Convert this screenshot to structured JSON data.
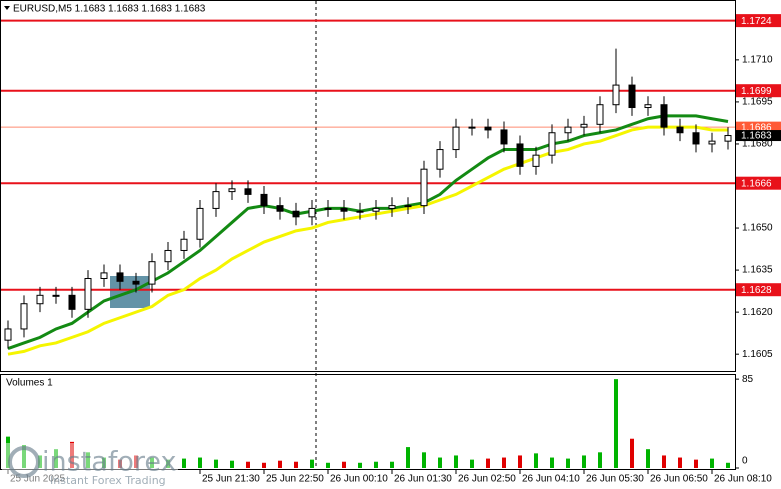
{
  "chart_data": [
    {
      "type": "candlestick",
      "title": "EURUSD,M5 1.1683 1.1683 1.1683 1.1683",
      "categories": [
        "25 Jun 2025",
        null,
        null,
        null,
        null,
        null,
        null,
        null,
        null,
        null,
        null,
        null,
        "25 Jun 21:30",
        null,
        null,
        null,
        "25 Jun 22:50",
        null,
        null,
        null,
        "26 Jun 00:10",
        null,
        null,
        null,
        "26 Jun 01:30",
        null,
        null,
        null,
        "26 Jun 02:50",
        null,
        null,
        null,
        "26 Jun 04:10",
        null,
        null,
        null,
        "26 Jun 05:30",
        null,
        null,
        null,
        "26 Jun 06:50",
        null,
        null,
        null,
        "26 Jun 08:10",
        null
      ],
      "open": [
        1.161,
        1.1614,
        1.1623,
        1.1626,
        1.1626,
        1.1621,
        1.1632,
        1.1634,
        1.1631,
        1.163,
        1.1638,
        1.1642,
        1.1646,
        1.1657,
        1.1663,
        1.1664,
        1.1662,
        1.1658,
        1.1656,
        1.1654,
        1.1657,
        1.1657,
        1.1656,
        1.1656,
        1.1657,
        1.1658,
        1.1658,
        1.1671,
        1.1678,
        1.1686,
        1.1686,
        1.1685,
        1.168,
        1.1672,
        1.1676,
        1.1684,
        1.1686,
        1.1687,
        1.1694,
        1.1701,
        1.1693,
        1.1694,
        1.1686,
        1.1684,
        1.168,
        1.1681
      ],
      "high": [
        1.1617,
        1.1626,
        1.1629,
        1.1629,
        1.1629,
        1.1635,
        1.1637,
        1.1637,
        1.1634,
        1.1641,
        1.1645,
        1.1649,
        1.166,
        1.1666,
        1.1667,
        1.1667,
        1.1665,
        1.1661,
        1.1659,
        1.166,
        1.166,
        1.166,
        1.1659,
        1.166,
        1.1661,
        1.1661,
        1.1674,
        1.1681,
        1.1689,
        1.1689,
        1.1689,
        1.1688,
        1.1683,
        1.1679,
        1.1687,
        1.1689,
        1.169,
        1.1697,
        1.1714,
        1.1704,
        1.1697,
        1.1697,
        1.1689,
        1.1687,
        1.1684,
        1.1686
      ],
      "low": [
        1.1607,
        1.1611,
        1.162,
        1.1623,
        1.1618,
        1.1618,
        1.1629,
        1.1628,
        1.1627,
        1.1627,
        1.1635,
        1.1639,
        1.1643,
        1.1654,
        1.166,
        1.1659,
        1.1655,
        1.1653,
        1.1651,
        1.1651,
        1.1654,
        1.1653,
        1.1653,
        1.1653,
        1.1654,
        1.1655,
        1.1655,
        1.1668,
        1.1675,
        1.1683,
        1.1682,
        1.1677,
        1.1669,
        1.1669,
        1.1673,
        1.1681,
        1.1683,
        1.1684,
        1.1691,
        1.169,
        1.169,
        1.1683,
        1.1681,
        1.1677,
        1.1677,
        1.1678
      ],
      "close": [
        1.1614,
        1.1623,
        1.1626,
        1.1626,
        1.1621,
        1.1632,
        1.1634,
        1.1631,
        1.163,
        1.1638,
        1.1642,
        1.1646,
        1.1657,
        1.1663,
        1.1664,
        1.1662,
        1.1658,
        1.1656,
        1.1654,
        1.1657,
        1.1657,
        1.1656,
        1.1656,
        1.1657,
        1.1658,
        1.1658,
        1.1671,
        1.1678,
        1.1686,
        1.1686,
        1.1685,
        1.168,
        1.1672,
        1.1676,
        1.1684,
        1.1686,
        1.1687,
        1.1694,
        1.1701,
        1.1693,
        1.1694,
        1.1686,
        1.1684,
        1.168,
        1.1681,
        1.1683
      ],
      "up_color": "#ffffff",
      "down_color": "#000000",
      "wick_color": "#000000",
      "lines": [
        {
          "color": "#138a13",
          "values": [
            1.1607,
            1.1609,
            1.1611,
            1.1614,
            1.1616,
            1.162,
            1.1624,
            1.1626,
            1.1628,
            1.1631,
            1.1634,
            1.1638,
            1.1642,
            1.1647,
            1.1652,
            1.1657,
            1.1658,
            1.1657,
            1.1655,
            1.1656,
            1.1657,
            1.1657,
            1.1656,
            1.1657,
            1.1657,
            1.1658,
            1.1659,
            1.1662,
            1.1667,
            1.1671,
            1.1675,
            1.1678,
            1.1678,
            1.1678,
            1.168,
            1.1681,
            1.1683,
            1.1684,
            1.1685,
            1.1687,
            1.1689,
            1.169,
            1.169,
            1.169,
            1.1689,
            1.1688
          ]
        },
        {
          "color": "#f5f500",
          "values": [
            1.1605,
            1.1606,
            1.1608,
            1.1609,
            1.1611,
            1.1613,
            1.1616,
            1.1618,
            1.162,
            1.1622,
            1.1626,
            1.1628,
            1.1632,
            1.1635,
            1.1639,
            1.1642,
            1.1645,
            1.1647,
            1.1649,
            1.165,
            1.1652,
            1.1653,
            1.1654,
            1.1655,
            1.1656,
            1.1657,
            1.1658,
            1.166,
            1.1662,
            1.1665,
            1.1668,
            1.1671,
            1.1673,
            1.1675,
            1.1677,
            1.1678,
            1.168,
            1.1681,
            1.1683,
            1.1685,
            1.1686,
            1.1686,
            1.1686,
            1.1686,
            1.1685,
            1.1685
          ]
        }
      ],
      "levels": [
        1.1724,
        1.1699,
        1.1666,
        1.1628
      ],
      "level_color": "#e8111a",
      "price_markers": [
        1.1686,
        1.1683
      ],
      "price_marker_colors": [
        "#ff5a36",
        "#000000"
      ],
      "ylim": [
        1.1599,
        1.1731
      ],
      "yticks": [
        {
          "value": 1.171,
          "label": "1.1710"
        },
        1.1695,
        {
          "value": 1.168,
          "label": "1.1680"
        },
        1.1665,
        {
          "value": 1.165,
          "label": "1.1650"
        },
        1.1635,
        {
          "value": 1.162,
          "label": "1.1620"
        },
        1.1605
      ]
    },
    {
      "type": "bar",
      "title": "Volumes 1",
      "values": [
        30,
        22,
        12,
        18,
        25,
        15,
        10,
        8,
        12,
        10,
        8,
        9,
        10,
        8,
        7,
        6,
        5,
        7,
        6,
        8,
        5,
        6,
        5,
        6,
        6,
        20,
        15,
        10,
        12,
        8,
        9,
        10,
        12,
        14,
        10,
        9,
        12,
        15,
        85,
        28,
        18,
        12,
        10,
        8,
        9,
        5
      ],
      "up_color": "#00b400",
      "down_color": "#e00000",
      "ylim": [
        0,
        88
      ],
      "yticks": [
        0,
        85
      ]
    }
  ],
  "watermark": {
    "brand": "instaforex",
    "tagline": "Instant Forex Trading"
  }
}
